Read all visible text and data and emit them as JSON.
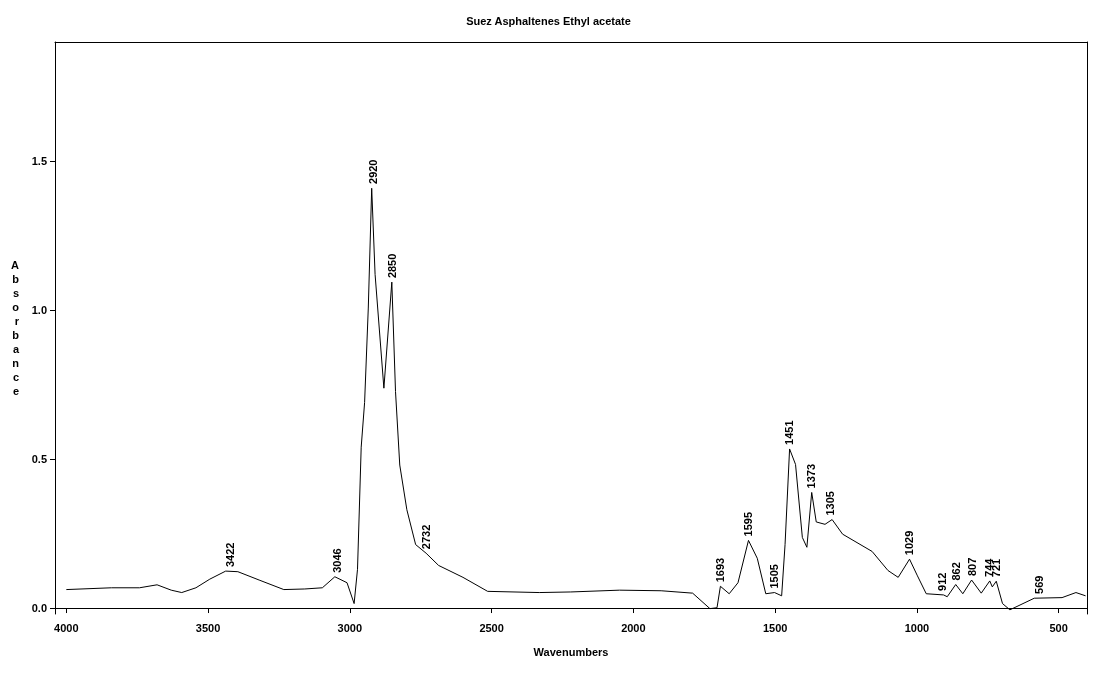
{
  "chart_data": {
    "type": "line",
    "title": "Suez Asphaltenes Ethyl acetate",
    "xlabel": "Wavenumbers",
    "ylabel": "Absorbance",
    "xlim": [
      4040,
      400
    ],
    "ylim": [
      -0.02,
      1.9
    ],
    "xticks": [
      4000,
      3500,
      3000,
      2500,
      2000,
      1500,
      1000,
      500
    ],
    "yticks": [
      {
        "value": 0,
        "label": "0.0"
      },
      {
        "value": 0.5,
        "label": "0.5"
      },
      {
        "value": 1,
        "label": "1.0"
      },
      {
        "value": 1.5,
        "label": "1.5"
      }
    ],
    "grid": false,
    "marker": "none",
    "line_style": "solid",
    "series": [
      {
        "color": "#000000",
        "x": [
          4000,
          3841,
          3742,
          3680,
          3630,
          3593,
          3543,
          3494,
          3438,
          3395,
          3320,
          3233,
          3159,
          3097,
          3053,
          3010,
          2985,
          2973,
          2960,
          2948,
          2935,
          2923,
          2911,
          2880,
          2852,
          2839,
          2824,
          2799,
          2768,
          2731,
          2687,
          2601,
          2514,
          2332,
          2221,
          2049,
          1902,
          1791,
          1730,
          1705,
          1693,
          1662,
          1631,
          1594,
          1563,
          1533,
          1502,
          1477,
          1465,
          1449,
          1428,
          1404,
          1388,
          1371,
          1355,
          1324,
          1299,
          1262,
          1158,
          1102,
          1066,
          1026,
          998,
          967,
          906,
          893,
          863,
          838,
          807,
          773,
          743,
          734,
          720,
          698,
          672,
          586,
          488,
          439,
          405
        ],
        "values": [
          0.062,
          0.068,
          0.068,
          0.078,
          0.06,
          0.052,
          0.068,
          0.097,
          0.124,
          0.122,
          0.094,
          0.062,
          0.064,
          0.068,
          0.105,
          0.085,
          0.015,
          0.13,
          0.54,
          0.69,
          1.007,
          1.409,
          1.12,
          0.738,
          1.094,
          0.727,
          0.48,
          0.33,
          0.213,
          0.184,
          0.143,
          0.103,
          0.056,
          0.052,
          0.054,
          0.06,
          0.058,
          0.05,
          -0.002,
          0.001,
          0.073,
          0.048,
          0.085,
          0.227,
          0.167,
          0.048,
          0.052,
          0.041,
          0.213,
          0.534,
          0.482,
          0.237,
          0.204,
          0.388,
          0.289,
          0.281,
          0.297,
          0.248,
          0.19,
          0.126,
          0.103,
          0.164,
          0.108,
          0.048,
          0.044,
          0.038,
          0.079,
          0.048,
          0.094,
          0.05,
          0.091,
          0.071,
          0.09,
          0.015,
          -0.006,
          0.033,
          0.035,
          0.052,
          0.041
        ]
      }
    ],
    "annotations": [
      {
        "text": "3422",
        "x": 3422,
        "y": 0.124
      },
      {
        "text": "3046",
        "x": 3046,
        "y": 0.105
      },
      {
        "text": "2920",
        "x": 2920,
        "y": 1.41
      },
      {
        "text": "2850",
        "x": 2850,
        "y": 1.094
      },
      {
        "text": "2732",
        "x": 2732,
        "y": 0.184
      },
      {
        "text": "1693",
        "x": 1693,
        "y": 0.073
      },
      {
        "text": "1595",
        "x": 1595,
        "y": 0.227
      },
      {
        "text": "1505",
        "x": 1505,
        "y": 0.052
      },
      {
        "text": "1451",
        "x": 1451,
        "y": 0.534
      },
      {
        "text": "1373",
        "x": 1373,
        "y": 0.388
      },
      {
        "text": "1305",
        "x": 1305,
        "y": 0.297
      },
      {
        "text": "1029",
        "x": 1029,
        "y": 0.164
      },
      {
        "text": "912",
        "x": 912,
        "y": 0.044
      },
      {
        "text": "862",
        "x": 862,
        "y": 0.079
      },
      {
        "text": "807",
        "x": 807,
        "y": 0.094
      },
      {
        "text": "744",
        "x": 744,
        "y": 0.091
      },
      {
        "text": "721",
        "x": 721,
        "y": 0.09
      },
      {
        "text": "569",
        "x": 569,
        "y": 0.034
      }
    ]
  }
}
